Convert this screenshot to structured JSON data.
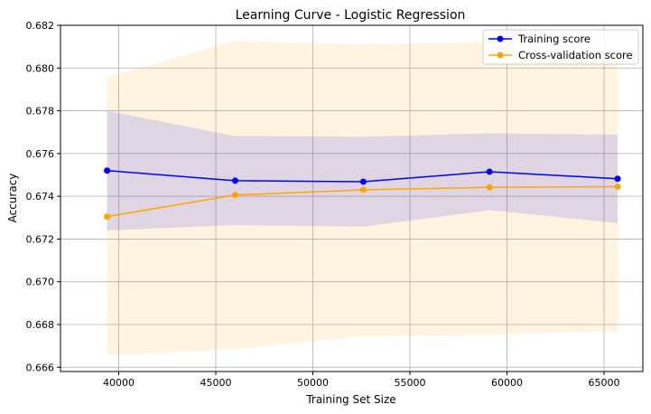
{
  "chart_data": {
    "type": "line",
    "title": "Learning Curve - Logistic Regression",
    "xlabel": "Training Set Size",
    "ylabel": "Accuracy",
    "x": [
      39400,
      46000,
      52600,
      59100,
      65700
    ],
    "series": [
      {
        "name": "Training score",
        "color": "#0000ff",
        "marker": "circle",
        "values": [
          0.6752,
          0.67473,
          0.67468,
          0.67515,
          0.67482
        ],
        "band_lower": [
          0.6724,
          0.67265,
          0.67258,
          0.67335,
          0.67275
        ],
        "band_upper": [
          0.678,
          0.67682,
          0.67678,
          0.67695,
          0.67688
        ]
      },
      {
        "name": "Cross-validation score",
        "color": "#ffa500",
        "marker": "circle",
        "values": [
          0.67305,
          0.67406,
          0.6743,
          0.67442,
          0.67445
        ],
        "band_lower": [
          0.66655,
          0.66685,
          0.66745,
          0.66752,
          0.6677
        ],
        "band_upper": [
          0.67955,
          0.68128,
          0.6811,
          0.68125,
          0.6812
        ]
      }
    ],
    "xlim": [
      37000,
      67000
    ],
    "ylim": [
      0.6658,
      0.682
    ],
    "xticks": [
      40000,
      45000,
      50000,
      55000,
      60000,
      65000
    ],
    "xtick_labels": [
      "40000",
      "45000",
      "50000",
      "55000",
      "60000",
      "65000"
    ],
    "yticks": [
      0.666,
      0.668,
      0.67,
      0.672,
      0.674,
      0.676,
      0.678,
      0.68,
      0.682
    ],
    "ytick_labels": [
      "0.666",
      "0.668",
      "0.670",
      "0.672",
      "0.674",
      "0.676",
      "0.678",
      "0.680",
      "0.682"
    ],
    "grid": true,
    "legend_position": "top-right"
  }
}
